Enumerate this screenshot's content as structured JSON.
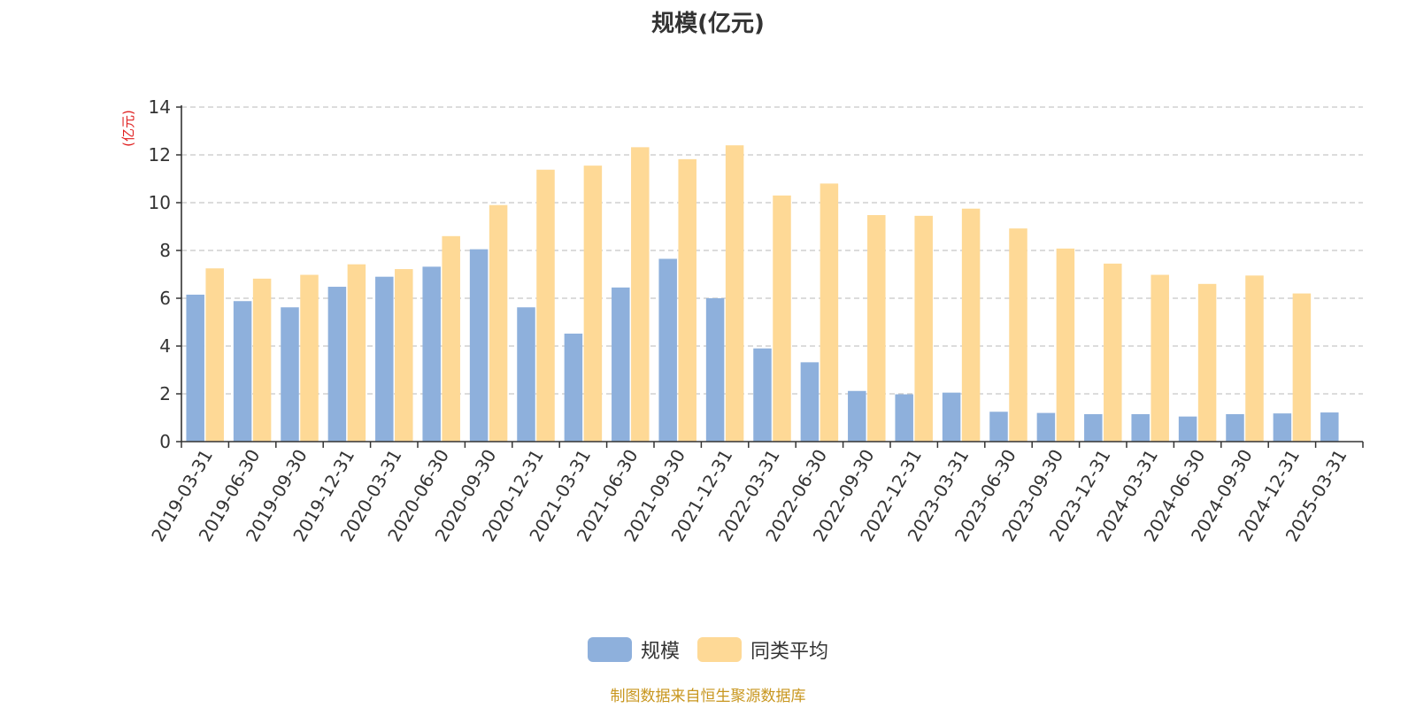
{
  "colors": {
    "series_primary": "#8eb0dc",
    "series_secondary": "#fed996",
    "axis": "#333333",
    "grid": "#c8c8c8",
    "unit_label": "#e02020",
    "source_note": "#c8961e",
    "text": "#333333"
  },
  "chart_data": {
    "type": "bar",
    "title": "规模(亿元)",
    "ylabel": "(亿元)",
    "xlabel": "",
    "ylim": [
      0,
      14
    ],
    "yticks": [
      "0",
      "2",
      "4",
      "6",
      "8",
      "10",
      "12",
      "14"
    ],
    "grid": "horizontal-dashed",
    "legend_position": "bottom",
    "categories": [
      "2019-03-31",
      "2019-06-30",
      "2019-09-30",
      "2019-12-31",
      "2020-03-31",
      "2020-06-30",
      "2020-09-30",
      "2020-12-31",
      "2021-03-31",
      "2021-06-30",
      "2021-09-30",
      "2021-12-31",
      "2022-03-31",
      "2022-06-30",
      "2022-09-30",
      "2022-12-31",
      "2023-03-31",
      "2023-06-30",
      "2023-09-30",
      "2023-12-31",
      "2024-03-31",
      "2024-06-30",
      "2024-09-30",
      "2024-12-31",
      "2025-03-31"
    ],
    "series": [
      {
        "name": "规模",
        "values": [
          6.15,
          5.88,
          5.62,
          6.48,
          6.9,
          7.32,
          8.05,
          5.62,
          4.52,
          6.45,
          7.65,
          6.0,
          3.9,
          3.32,
          2.12,
          1.98,
          2.05,
          1.25,
          1.2,
          1.15,
          1.15,
          1.05,
          1.15,
          1.18,
          1.22
        ]
      },
      {
        "name": "同类平均",
        "values": [
          7.25,
          6.82,
          6.98,
          7.42,
          7.22,
          8.6,
          9.9,
          11.38,
          11.55,
          12.32,
          11.82,
          12.4,
          10.3,
          10.8,
          9.48,
          9.45,
          9.75,
          8.92,
          8.08,
          7.45,
          6.98,
          6.6,
          6.95,
          6.2,
          null
        ]
      }
    ]
  },
  "source_note": "制图数据来自恒生聚源数据库"
}
